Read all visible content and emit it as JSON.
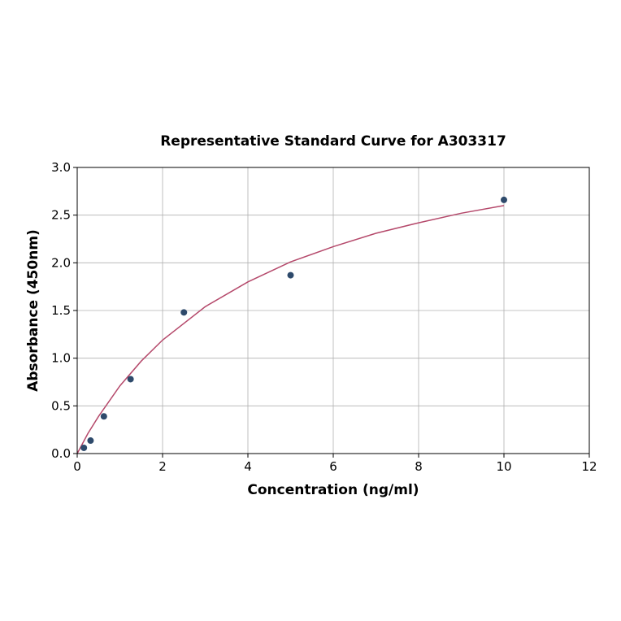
{
  "chart_data": {
    "type": "scatter",
    "title": "Representative Standard Curve for A303317",
    "xlabel": "Concentration (ng/ml)",
    "ylabel": "Absorbance (450nm)",
    "xlim": [
      0,
      12
    ],
    "ylim": [
      0,
      3.0
    ],
    "xticks": [
      "0",
      "2",
      "4",
      "6",
      "8",
      "10",
      "12"
    ],
    "yticks": [
      "0.0",
      "0.5",
      "1.0",
      "1.5",
      "2.0",
      "2.5",
      "3.0"
    ],
    "grid": true,
    "points": {
      "x": [
        0.156,
        0.3125,
        0.625,
        1.25,
        2.5,
        5,
        10
      ],
      "y": [
        0.06,
        0.136,
        0.39,
        0.78,
        1.48,
        1.87,
        2.66
      ],
      "color": "#2e4a6b"
    },
    "fit_curve": {
      "x": [
        0,
        0.25,
        0.5,
        1,
        1.5,
        2,
        3,
        4,
        5,
        6,
        7,
        8,
        9,
        10
      ],
      "y": [
        0,
        0.21,
        0.39,
        0.71,
        0.97,
        1.19,
        1.54,
        1.8,
        2.01,
        2.17,
        2.31,
        2.42,
        2.52,
        2.6
      ],
      "color": "#b5496b"
    }
  }
}
